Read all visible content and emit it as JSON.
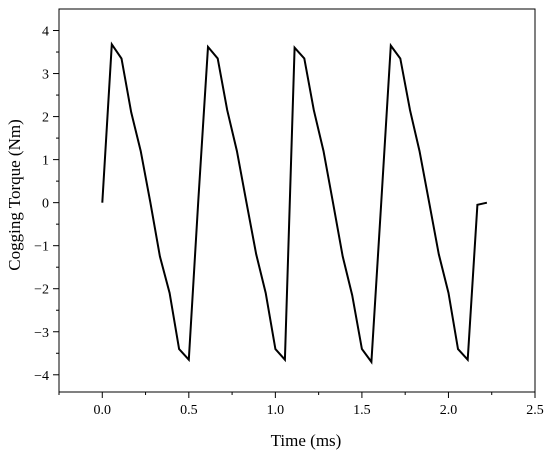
{
  "chart_data": {
    "type": "line",
    "title": "",
    "xlabel": "Time (ms)",
    "ylabel": "Cogging Torque (Nm)",
    "xlim": [
      -0.25,
      2.5
    ],
    "ylim": [
      -4.4,
      4.5
    ],
    "xticks": [
      0.0,
      0.5,
      1.0,
      1.5,
      2.0,
      2.5
    ],
    "xtick_labels": [
      "0.0",
      "0.5",
      "1.0",
      "1.5",
      "2.0",
      "2.5"
    ],
    "yticks": [
      -4,
      -3,
      -2,
      -1,
      0,
      1,
      2,
      3,
      4
    ],
    "ytick_labels": [
      "−4",
      "−3",
      "−2",
      "−1",
      "0",
      "1",
      "2",
      "3",
      "4"
    ],
    "grid": false,
    "legend": "none",
    "line_color": "#000000",
    "series": [
      {
        "x": [
          0.0,
          0.055,
          0.111,
          0.167,
          0.222,
          0.278,
          0.333,
          0.389,
          0.444,
          0.5,
          0.555,
          0.611,
          0.667,
          0.722,
          0.778,
          0.833,
          0.889,
          0.944,
          1.0,
          1.055,
          1.111,
          1.167,
          1.222,
          1.278,
          1.333,
          1.389,
          1.444,
          1.5,
          1.555,
          1.611,
          1.667,
          1.722,
          1.778,
          1.833,
          1.889,
          1.944,
          2.0,
          2.055,
          2.111,
          2.167,
          2.222
        ],
        "y": [
          0.0,
          3.68,
          3.35,
          2.1,
          1.2,
          0.0,
          -1.25,
          -2.1,
          -3.4,
          -3.65,
          0.05,
          3.62,
          3.35,
          2.15,
          1.2,
          0.0,
          -1.2,
          -2.1,
          -3.4,
          -3.65,
          3.6,
          3.35,
          2.15,
          1.2,
          0.0,
          -1.25,
          -2.15,
          -3.4,
          -3.7,
          -0.05,
          3.65,
          3.35,
          2.15,
          1.2,
          0.0,
          -1.2,
          -2.1,
          -3.4,
          -3.65,
          -0.05,
          0.0
        ]
      }
    ]
  }
}
